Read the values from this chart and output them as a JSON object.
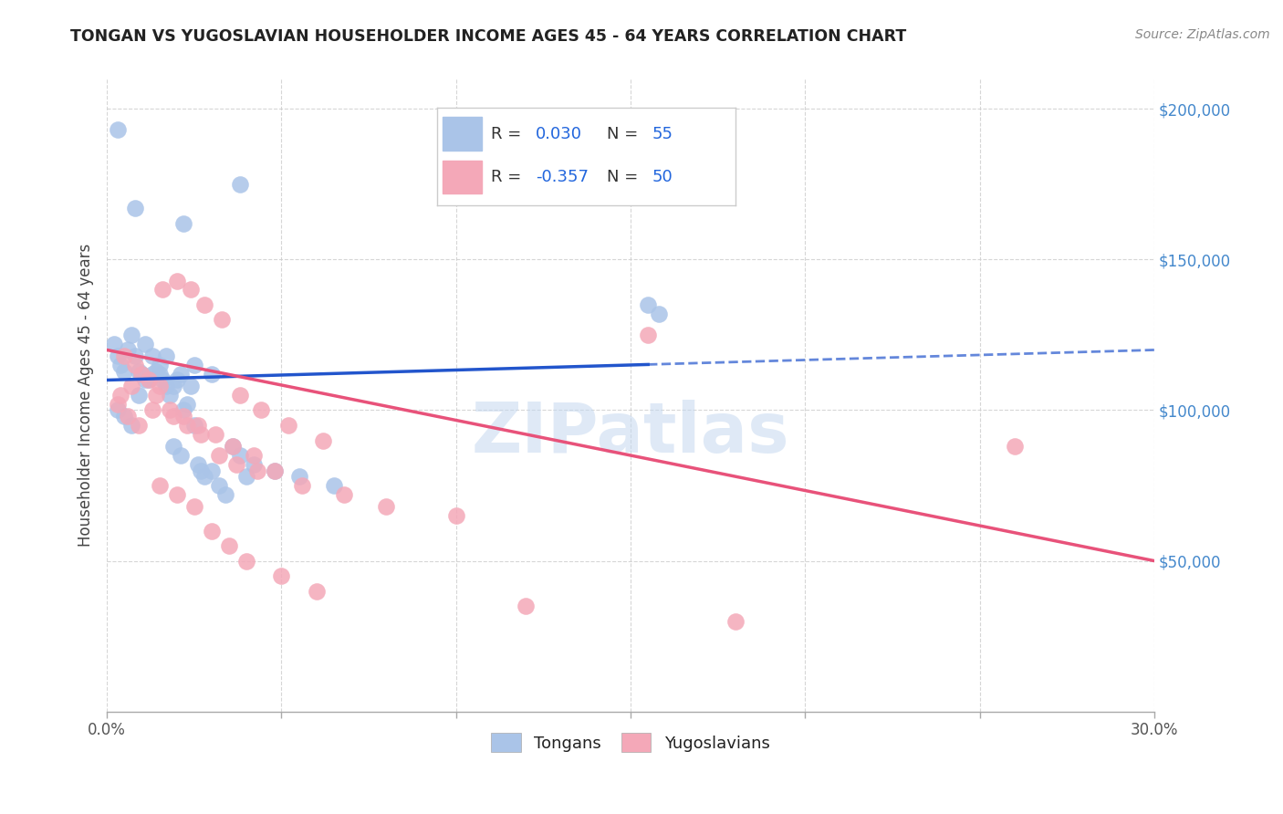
{
  "title": "TONGAN VS YUGOSLAVIAN HOUSEHOLDER INCOME AGES 45 - 64 YEARS CORRELATION CHART",
  "source": "Source: ZipAtlas.com",
  "ylabel": "Householder Income Ages 45 - 64 years",
  "xmin": 0.0,
  "xmax": 0.3,
  "ymin": 0,
  "ymax": 210000,
  "yticks": [
    50000,
    100000,
    150000,
    200000
  ],
  "ytick_labels": [
    "$50,000",
    "$100,000",
    "$150,000",
    "$200,000"
  ],
  "xticks": [
    0.0,
    0.05,
    0.1,
    0.15,
    0.2,
    0.25,
    0.3
  ],
  "grid_color": "#cccccc",
  "background_color": "#ffffff",
  "tongan_color": "#aac4e8",
  "yugoslavian_color": "#f4a8b8",
  "tongan_line_color": "#2255cc",
  "yugoslavian_line_color": "#e8527a",
  "legend_R_tongan": "0.030",
  "legend_N_tongan": "55",
  "legend_R_yugoslav": "-0.357",
  "legend_N_yugoslav": "50",
  "watermark": "ZIPatlas",
  "legend_label_tongan": "Tongans",
  "legend_label_yugoslav": "Yugoslavians",
  "tongan_line_x0": 0.0,
  "tongan_line_y0": 110000,
  "tongan_line_x1": 0.3,
  "tongan_line_y1": 120000,
  "tongan_line_solid_end": 0.155,
  "yugoslav_line_x0": 0.0,
  "yugoslav_line_y0": 120000,
  "yugoslav_line_x1": 0.3,
  "yugoslav_line_y1": 50000,
  "tongan_x": [
    0.003,
    0.008,
    0.022,
    0.038,
    0.002,
    0.003,
    0.004,
    0.005,
    0.006,
    0.007,
    0.008,
    0.009,
    0.01,
    0.011,
    0.012,
    0.013,
    0.014,
    0.015,
    0.016,
    0.017,
    0.018,
    0.019,
    0.02,
    0.021,
    0.022,
    0.023,
    0.024,
    0.025,
    0.026,
    0.027,
    0.028,
    0.03,
    0.032,
    0.034,
    0.036,
    0.038,
    0.042,
    0.048,
    0.055,
    0.065,
    0.155,
    0.158,
    0.003,
    0.005,
    0.007,
    0.009,
    0.011,
    0.013,
    0.015,
    0.017,
    0.019,
    0.021,
    0.025,
    0.03,
    0.04
  ],
  "tongan_y": [
    193000,
    167000,
    162000,
    175000,
    122000,
    118000,
    115000,
    113000,
    120000,
    125000,
    118000,
    113000,
    112000,
    122000,
    110000,
    118000,
    113000,
    112000,
    110000,
    108000,
    105000,
    108000,
    110000,
    112000,
    100000,
    102000,
    108000,
    95000,
    82000,
    80000,
    78000,
    80000,
    75000,
    72000,
    88000,
    85000,
    82000,
    80000,
    78000,
    75000,
    135000,
    132000,
    100000,
    98000,
    95000,
    105000,
    110000,
    112000,
    115000,
    118000,
    88000,
    85000,
    115000,
    112000,
    78000
  ],
  "yugoslav_x": [
    0.004,
    0.007,
    0.01,
    0.013,
    0.016,
    0.02,
    0.024,
    0.028,
    0.033,
    0.038,
    0.044,
    0.052,
    0.062,
    0.005,
    0.008,
    0.012,
    0.015,
    0.019,
    0.023,
    0.027,
    0.032,
    0.037,
    0.043,
    0.003,
    0.006,
    0.009,
    0.014,
    0.018,
    0.022,
    0.026,
    0.031,
    0.036,
    0.042,
    0.048,
    0.056,
    0.068,
    0.08,
    0.1,
    0.155,
    0.26,
    0.015,
    0.02,
    0.025,
    0.03,
    0.035,
    0.04,
    0.05,
    0.06,
    0.12,
    0.18
  ],
  "yugoslav_y": [
    105000,
    108000,
    112000,
    100000,
    140000,
    143000,
    140000,
    135000,
    130000,
    105000,
    100000,
    95000,
    90000,
    118000,
    115000,
    110000,
    108000,
    98000,
    95000,
    92000,
    85000,
    82000,
    80000,
    102000,
    98000,
    95000,
    105000,
    100000,
    98000,
    95000,
    92000,
    88000,
    85000,
    80000,
    75000,
    72000,
    68000,
    65000,
    125000,
    88000,
    75000,
    72000,
    68000,
    60000,
    55000,
    50000,
    45000,
    40000,
    35000,
    30000
  ]
}
